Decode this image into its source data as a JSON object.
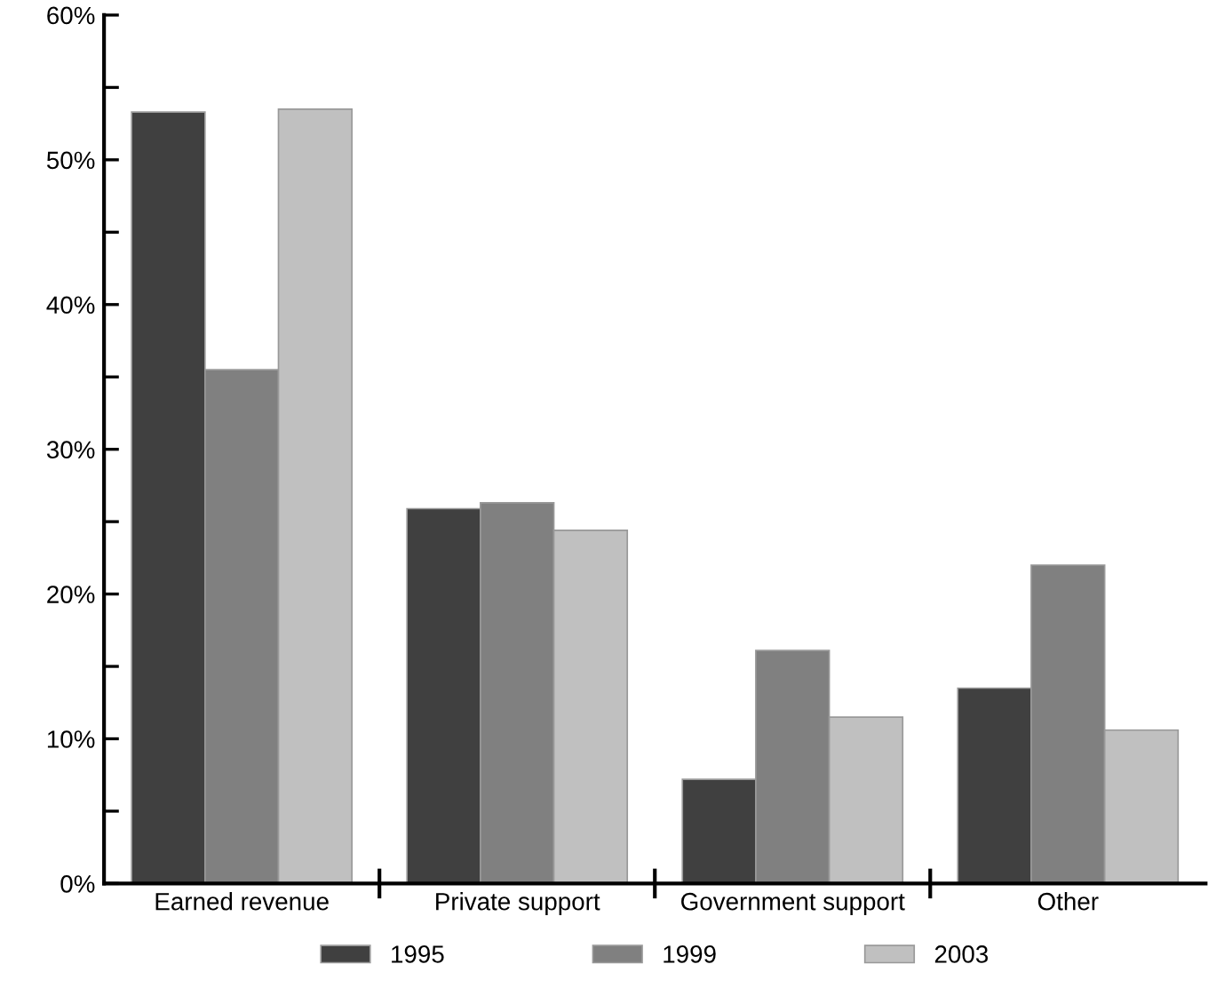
{
  "chart_data": {
    "type": "bar",
    "categories": [
      "Earned revenue",
      "Private support",
      "Government support",
      "Other"
    ],
    "series": [
      {
        "name": "1995",
        "color": "#404040",
        "values": [
          53.3,
          25.9,
          7.2,
          13.5
        ]
      },
      {
        "name": "1999",
        "color": "#808080",
        "values": [
          35.5,
          26.3,
          16.1,
          22.0
        ]
      },
      {
        "name": "2003",
        "color": "#c0c0c0",
        "values": [
          53.5,
          24.4,
          11.5,
          10.6
        ]
      }
    ],
    "ylim": [
      0,
      60
    ],
    "yticks": [
      {
        "value": 0,
        "label": "0%"
      },
      {
        "value": 5,
        "label": null
      },
      {
        "value": 10,
        "label": "10%"
      },
      {
        "value": 15,
        "label": null
      },
      {
        "value": 20,
        "label": "20%"
      },
      {
        "value": 25,
        "label": null
      },
      {
        "value": 30,
        "label": "30%"
      },
      {
        "value": 35,
        "label": null
      },
      {
        "value": 40,
        "label": "40%"
      },
      {
        "value": 45,
        "label": null
      },
      {
        "value": 50,
        "label": "50%"
      },
      {
        "value": 55,
        "label": null
      },
      {
        "value": 60,
        "label": "60%"
      }
    ],
    "grid": false,
    "legend": "bottom"
  }
}
